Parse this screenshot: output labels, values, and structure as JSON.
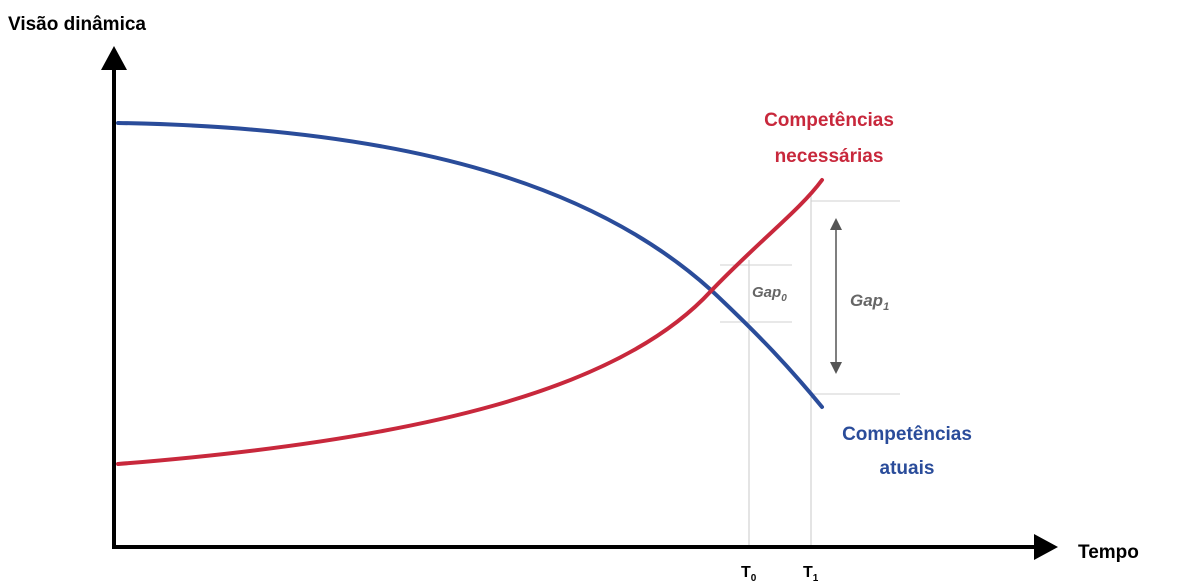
{
  "labels": {
    "y_axis": "Visão dinâmica",
    "x_axis": "Tempo",
    "t0_base": "T",
    "t0_sub": "0",
    "t1_base": "T",
    "t1_sub": "1",
    "gap0_base": "Gap",
    "gap0_sub": "0",
    "gap1_base": "Gap",
    "gap1_sub": "1"
  },
  "curves": {
    "required": {
      "line1": "Competências",
      "line2": "necessárias",
      "color": "#c8283c"
    },
    "current": {
      "line1": "Competências",
      "line2": "atuais",
      "color": "#2a4c9a"
    }
  },
  "colors": {
    "axis": "#000000",
    "guide": "#c8c8c8",
    "gap_text": "#666666",
    "arrow": "#555555"
  }
}
